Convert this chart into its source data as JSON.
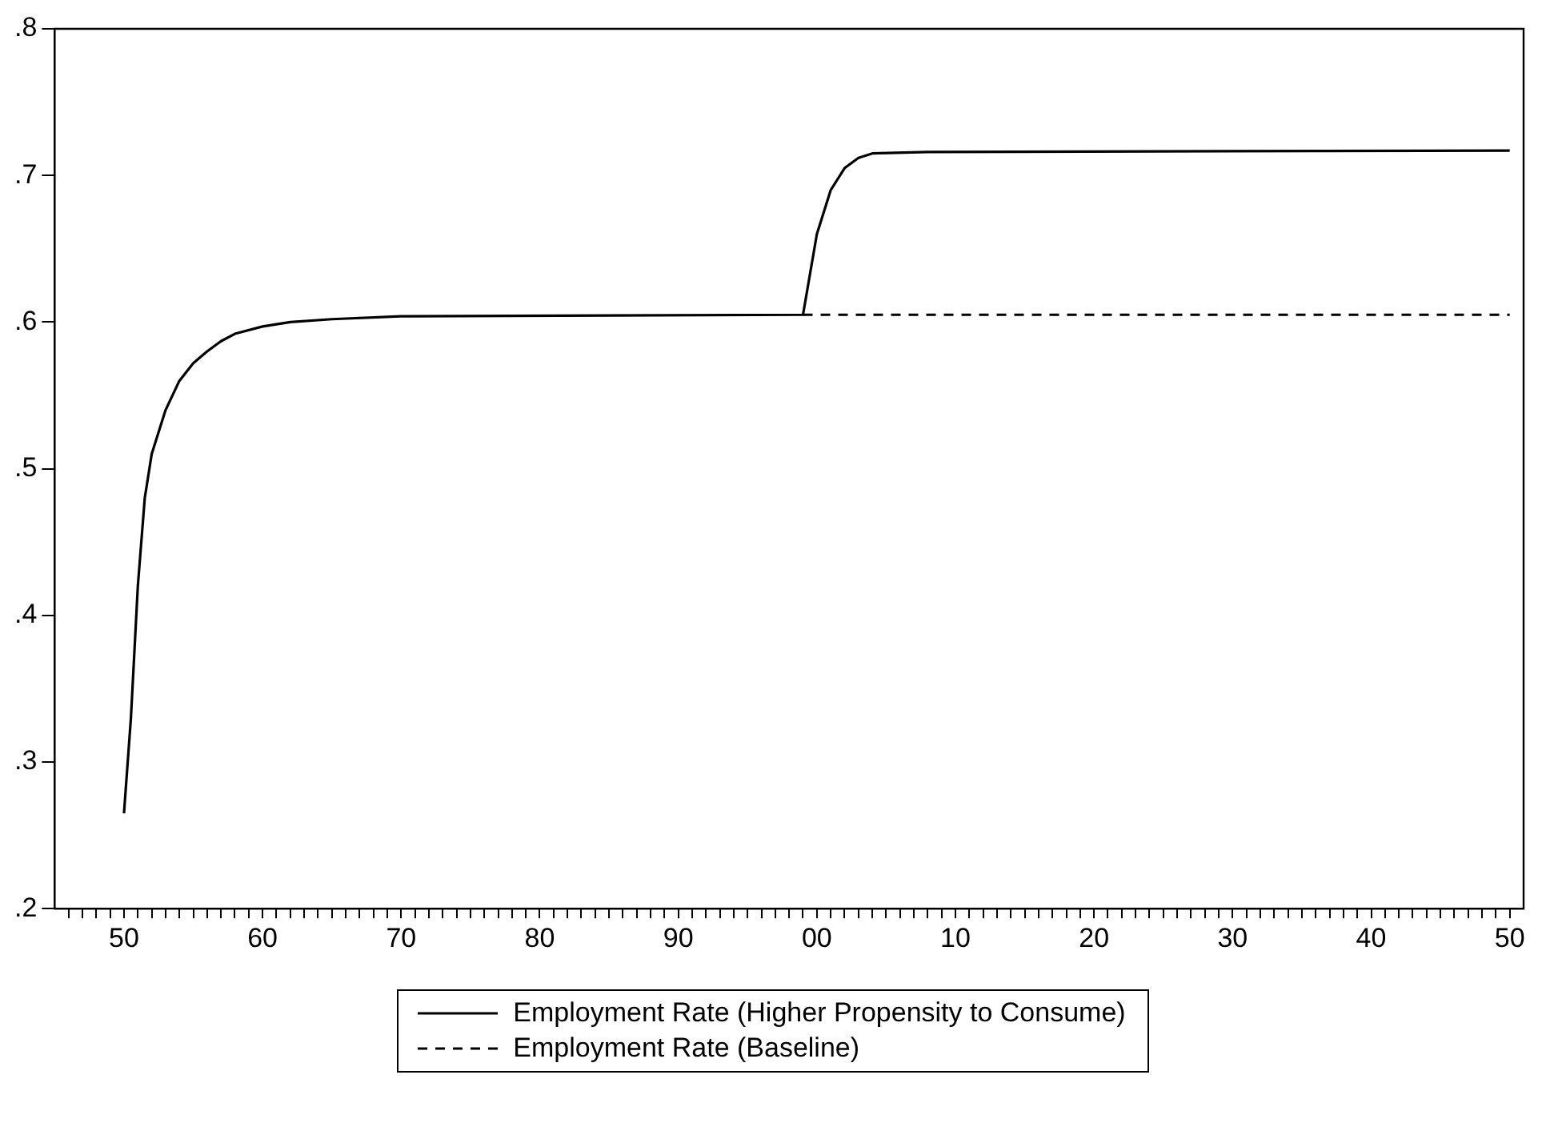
{
  "chart_data": {
    "type": "line",
    "xlim": [
      1945,
      2051
    ],
    "ylim": [
      0.2,
      0.8
    ],
    "yticks": [
      {
        "value": 0.2,
        "label": ".2"
      },
      {
        "value": 0.3,
        "label": ".3"
      },
      {
        "value": 0.4,
        "label": ".4"
      },
      {
        "value": 0.5,
        "label": ".5"
      },
      {
        "value": 0.6,
        "label": ".6"
      },
      {
        "value": 0.7,
        "label": ".7"
      },
      {
        "value": 0.8,
        "label": ".8"
      }
    ],
    "xticks": [
      {
        "value": 1946,
        "label": null
      },
      {
        "value": 1947,
        "label": null
      },
      {
        "value": 1948,
        "label": null
      },
      {
        "value": 1949,
        "label": null
      },
      {
        "value": 1950,
        "label": "50"
      },
      {
        "value": 1951,
        "label": null
      },
      {
        "value": 1952,
        "label": null
      },
      {
        "value": 1953,
        "label": null
      },
      {
        "value": 1954,
        "label": null
      },
      {
        "value": 1955,
        "label": null
      },
      {
        "value": 1956,
        "label": null
      },
      {
        "value": 1957,
        "label": null
      },
      {
        "value": 1958,
        "label": null
      },
      {
        "value": 1959,
        "label": null
      },
      {
        "value": 1960,
        "label": "60"
      },
      {
        "value": 1961,
        "label": null
      },
      {
        "value": 1962,
        "label": null
      },
      {
        "value": 1963,
        "label": null
      },
      {
        "value": 1964,
        "label": null
      },
      {
        "value": 1965,
        "label": null
      },
      {
        "value": 1966,
        "label": null
      },
      {
        "value": 1967,
        "label": null
      },
      {
        "value": 1968,
        "label": null
      },
      {
        "value": 1969,
        "label": null
      },
      {
        "value": 1970,
        "label": "70"
      },
      {
        "value": 1971,
        "label": null
      },
      {
        "value": 1972,
        "label": null
      },
      {
        "value": 1973,
        "label": null
      },
      {
        "value": 1974,
        "label": null
      },
      {
        "value": 1975,
        "label": null
      },
      {
        "value": 1976,
        "label": null
      },
      {
        "value": 1977,
        "label": null
      },
      {
        "value": 1978,
        "label": null
      },
      {
        "value": 1979,
        "label": null
      },
      {
        "value": 1980,
        "label": "80"
      },
      {
        "value": 1981,
        "label": null
      },
      {
        "value": 1982,
        "label": null
      },
      {
        "value": 1983,
        "label": null
      },
      {
        "value": 1984,
        "label": null
      },
      {
        "value": 1985,
        "label": null
      },
      {
        "value": 1986,
        "label": null
      },
      {
        "value": 1987,
        "label": null
      },
      {
        "value": 1988,
        "label": null
      },
      {
        "value": 1989,
        "label": null
      },
      {
        "value": 1990,
        "label": "90"
      },
      {
        "value": 1991,
        "label": null
      },
      {
        "value": 1992,
        "label": null
      },
      {
        "value": 1993,
        "label": null
      },
      {
        "value": 1994,
        "label": null
      },
      {
        "value": 1995,
        "label": null
      },
      {
        "value": 1996,
        "label": null
      },
      {
        "value": 1997,
        "label": null
      },
      {
        "value": 1998,
        "label": null
      },
      {
        "value": 1999,
        "label": null
      },
      {
        "value": 2000,
        "label": "00"
      },
      {
        "value": 2001,
        "label": null
      },
      {
        "value": 2002,
        "label": null
      },
      {
        "value": 2003,
        "label": null
      },
      {
        "value": 2004,
        "label": null
      },
      {
        "value": 2005,
        "label": null
      },
      {
        "value": 2006,
        "label": null
      },
      {
        "value": 2007,
        "label": null
      },
      {
        "value": 2008,
        "label": null
      },
      {
        "value": 2009,
        "label": null
      },
      {
        "value": 2010,
        "label": "10"
      },
      {
        "value": 2011,
        "label": null
      },
      {
        "value": 2012,
        "label": null
      },
      {
        "value": 2013,
        "label": null
      },
      {
        "value": 2014,
        "label": null
      },
      {
        "value": 2015,
        "label": null
      },
      {
        "value": 2016,
        "label": null
      },
      {
        "value": 2017,
        "label": null
      },
      {
        "value": 2018,
        "label": null
      },
      {
        "value": 2019,
        "label": null
      },
      {
        "value": 2020,
        "label": "20"
      },
      {
        "value": 2021,
        "label": null
      },
      {
        "value": 2022,
        "label": null
      },
      {
        "value": 2023,
        "label": null
      },
      {
        "value": 2024,
        "label": null
      },
      {
        "value": 2025,
        "label": null
      },
      {
        "value": 2026,
        "label": null
      },
      {
        "value": 2027,
        "label": null
      },
      {
        "value": 2028,
        "label": null
      },
      {
        "value": 2029,
        "label": null
      },
      {
        "value": 2030,
        "label": "30"
      },
      {
        "value": 2031,
        "label": null
      },
      {
        "value": 2032,
        "label": null
      },
      {
        "value": 2033,
        "label": null
      },
      {
        "value": 2034,
        "label": null
      },
      {
        "value": 2035,
        "label": null
      },
      {
        "value": 2036,
        "label": null
      },
      {
        "value": 2037,
        "label": null
      },
      {
        "value": 2038,
        "label": null
      },
      {
        "value": 2039,
        "label": null
      },
      {
        "value": 2040,
        "label": "40"
      },
      {
        "value": 2041,
        "label": null
      },
      {
        "value": 2042,
        "label": null
      },
      {
        "value": 2043,
        "label": null
      },
      {
        "value": 2044,
        "label": null
      },
      {
        "value": 2045,
        "label": null
      },
      {
        "value": 2046,
        "label": null
      },
      {
        "value": 2047,
        "label": null
      },
      {
        "value": 2048,
        "label": null
      },
      {
        "value": 2049,
        "label": null
      },
      {
        "value": 2050,
        "label": "50"
      }
    ],
    "grid": false,
    "legend": "bottom",
    "series": [
      {
        "name": "Employment Rate (Higher Propensity to Consume)",
        "color": "#000000",
        "line_style": "solid",
        "x": [
          1950,
          1950.5,
          1951,
          1951.5,
          1952,
          1953,
          1954,
          1955,
          1956,
          1957,
          1958,
          1960,
          1962,
          1965,
          1970,
          1999,
          2000,
          2001,
          2002,
          2003,
          2004,
          2008,
          2050
        ],
        "values": [
          0.265,
          0.33,
          0.42,
          0.48,
          0.51,
          0.54,
          0.56,
          0.572,
          0.58,
          0.587,
          0.592,
          0.597,
          0.6,
          0.602,
          0.604,
          0.605,
          0.66,
          0.69,
          0.705,
          0.712,
          0.715,
          0.716,
          0.717
        ]
      },
      {
        "name": "Employment Rate (Baseline)",
        "color": "#000000",
        "line_style": "dashed",
        "x": [
          1999,
          2050
        ],
        "values": [
          0.605,
          0.605
        ]
      }
    ]
  }
}
